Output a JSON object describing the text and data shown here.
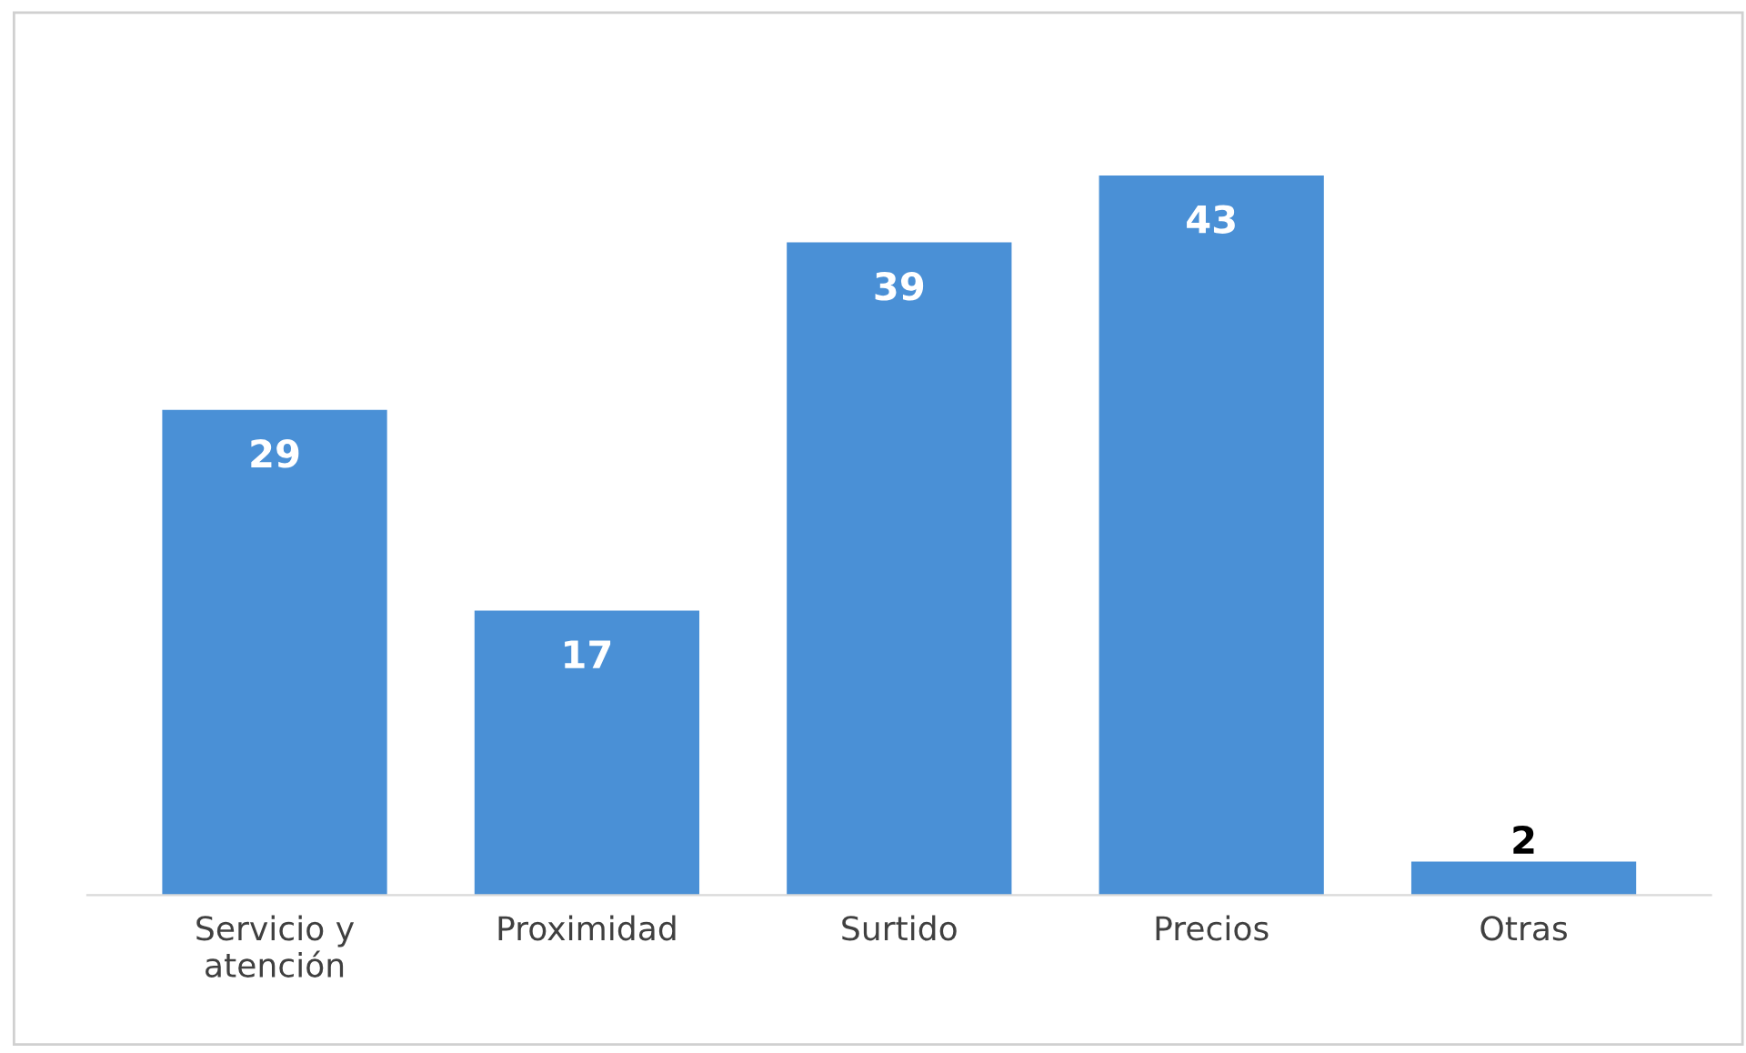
{
  "chart_data": {
    "type": "bar",
    "categories": [
      "Servicio y\natención",
      "Proximidad",
      "Surtido",
      "Precios",
      "Otras"
    ],
    "values": [
      29,
      17,
      39,
      43,
      2
    ],
    "color": "#4a90d6",
    "data_labels": true,
    "grid": false,
    "legend": false
  }
}
